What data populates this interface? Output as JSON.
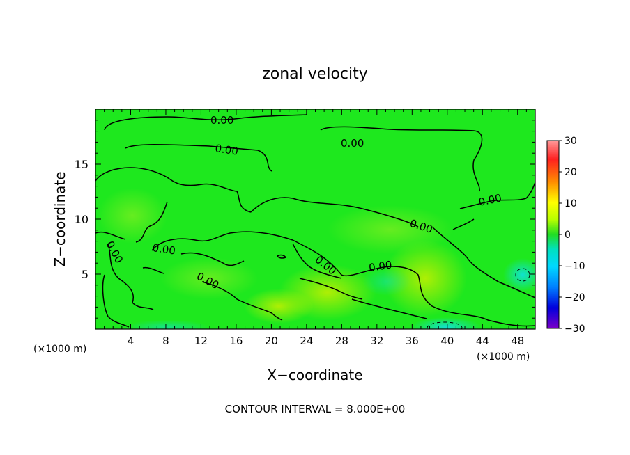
{
  "chart_data": {
    "type": "heatmap",
    "title": "zonal velocity",
    "xlabel": "X−coordinate",
    "ylabel": "Z−coordinate",
    "x_unit_left": "(×1000 m)",
    "x_unit_right": "(×1000 m)",
    "xlim": [
      0,
      50
    ],
    "ylim": [
      0,
      20
    ],
    "x_ticks": [
      4,
      8,
      12,
      16,
      20,
      24,
      28,
      32,
      36,
      40,
      44,
      48
    ],
    "y_ticks": [
      5,
      10,
      15
    ],
    "colorbar": {
      "ticks": [
        30,
        20,
        10,
        0,
        -10,
        -20,
        -30
      ],
      "tick_labels": [
        "30",
        "20",
        "10",
        "0",
        "−10",
        "−20",
        "−30"
      ],
      "range": [
        -30,
        30
      ],
      "colors": [
        "#ff9a9a",
        "#ff2020",
        "#ff8c00",
        "#ffff00",
        "#b8ff00",
        "#22dd22",
        "#00e0c0",
        "#00d8ff",
        "#0080ff",
        "#0000dd",
        "#7a00c8"
      ]
    },
    "contour_label": "0.00",
    "contour_interval_text": "CONTOUR INTERVAL = 8.000E+00",
    "background_color": "#1ee81e"
  }
}
